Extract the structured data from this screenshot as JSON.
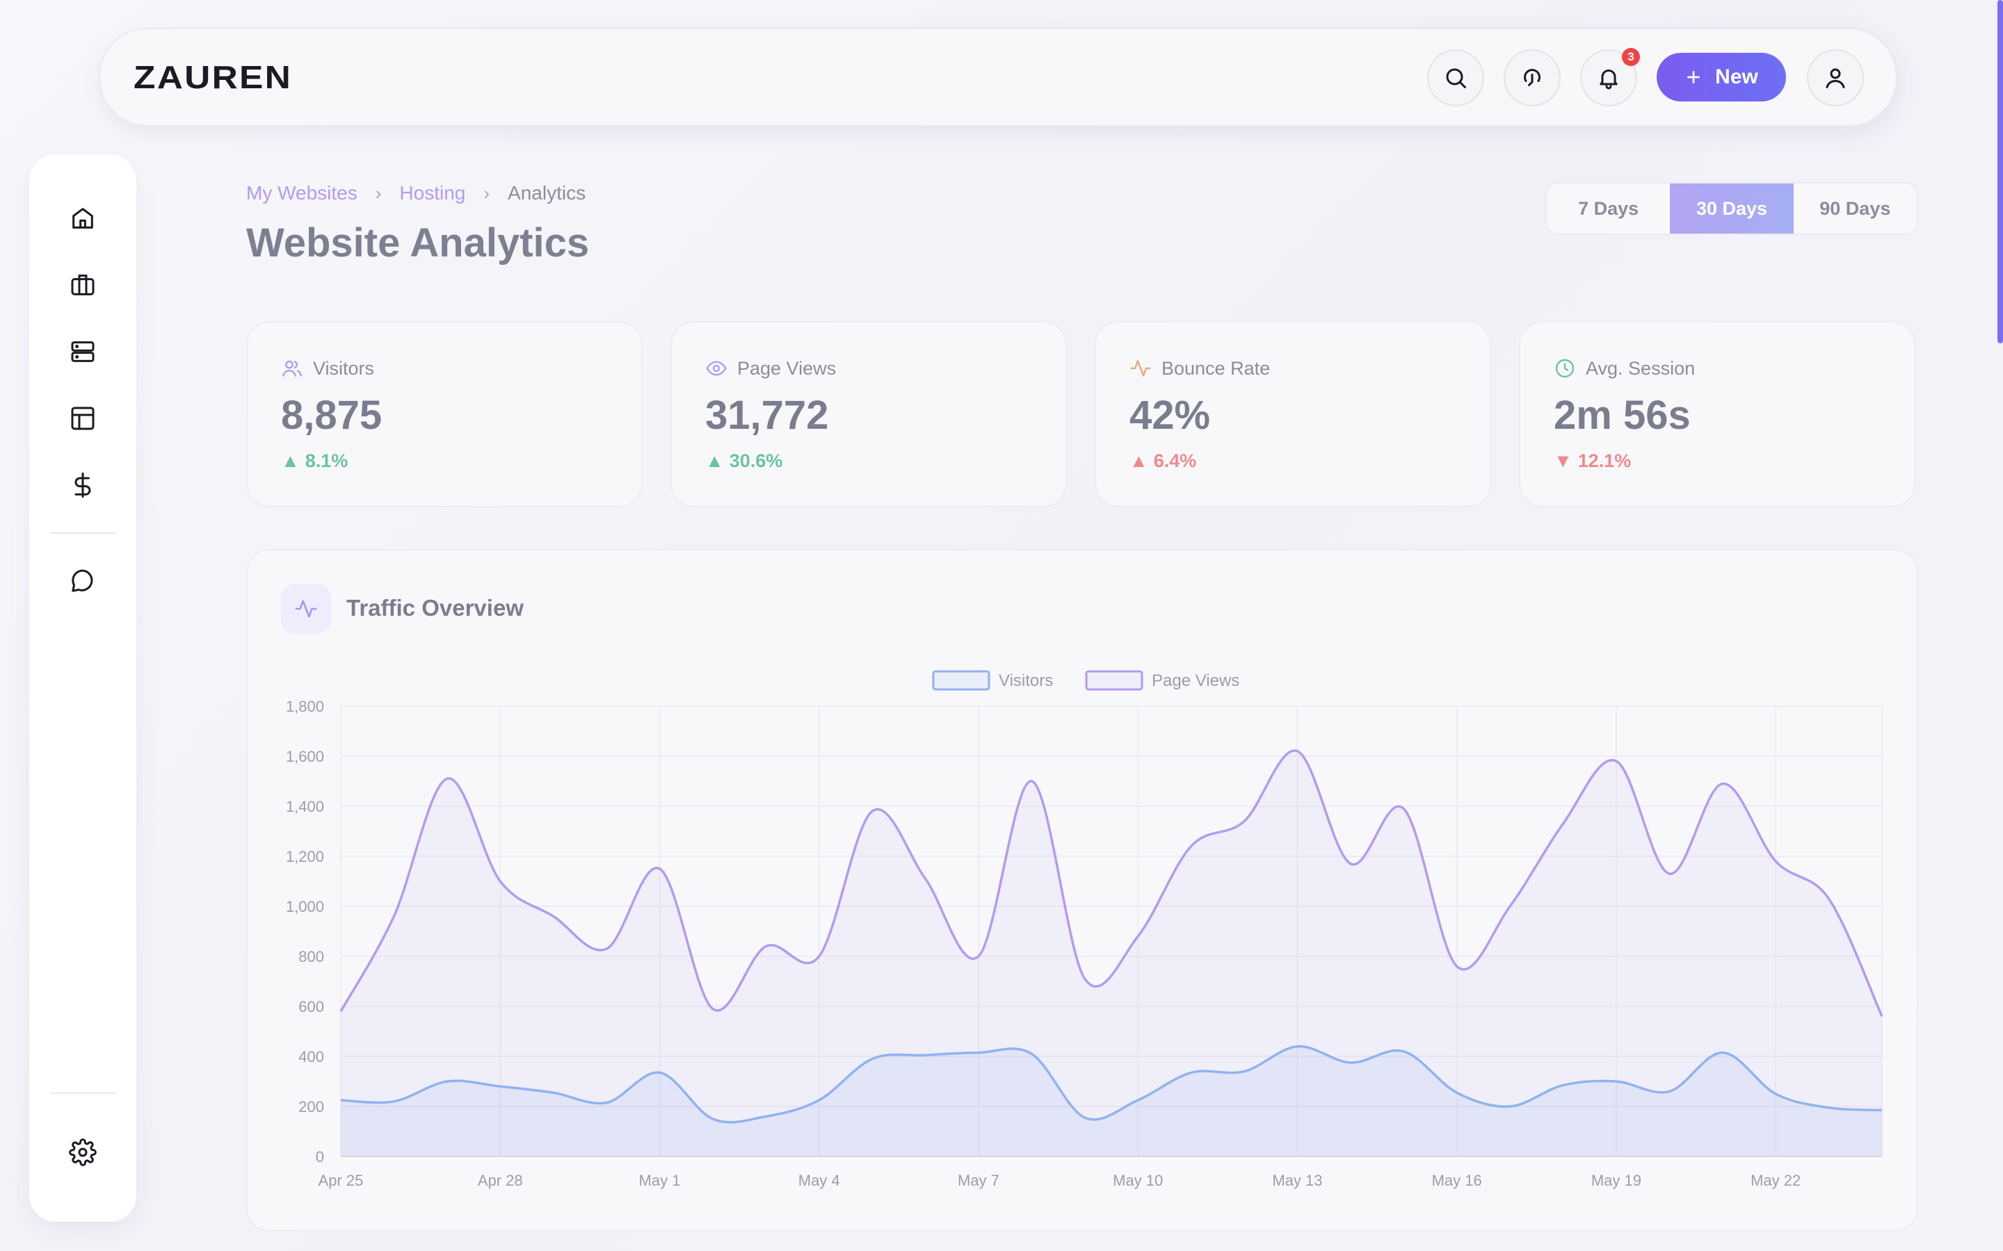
{
  "topbar": {
    "logo": "ZAUREN",
    "new_label": "New",
    "notification_count": "3"
  },
  "breadcrumb": [
    "My Websites",
    "Hosting",
    "Analytics"
  ],
  "page_title": "Website Analytics",
  "range": {
    "options": [
      "7 Days",
      "30 Days",
      "90 Days"
    ],
    "selected": "30 Days"
  },
  "stats": [
    {
      "label": "Visitors",
      "value": "8,875",
      "delta": "8.1%",
      "trend": "up",
      "icon": "users-icon",
      "color": "#b39bf0"
    },
    {
      "label": "Page Views",
      "value": "31,772",
      "delta": "30.6%",
      "trend": "up",
      "icon": "eye-icon",
      "color": "#b39bf0"
    },
    {
      "label": "Bounce Rate",
      "value": "42%",
      "delta": "6.4%",
      "trend": "up-bad",
      "icon": "activity-icon",
      "color": "#f0a57a"
    },
    {
      "label": "Avg. Session",
      "value": "2m 56s",
      "delta": "12.1%",
      "trend": "down",
      "icon": "clock-icon",
      "color": "#6bc4a0"
    }
  ],
  "panel": {
    "title": "Traffic Overview"
  },
  "chart_data": {
    "type": "line",
    "title": "Traffic Overview",
    "x": [
      "Apr 25",
      "Apr 26",
      "Apr 27",
      "Apr 28",
      "Apr 29",
      "Apr 30",
      "May 1",
      "May 2",
      "May 3",
      "May 4",
      "May 5",
      "May 6",
      "May 7",
      "May 8",
      "May 9",
      "May 10",
      "May 11",
      "May 12",
      "May 13",
      "May 14",
      "May 15",
      "May 16",
      "May 17",
      "May 18",
      "May 19",
      "May 20",
      "May 21",
      "May 22",
      "May 23",
      "May 24"
    ],
    "tick_labels": [
      "Apr 25",
      "Apr 28",
      "May 1",
      "May 4",
      "May 7",
      "May 10",
      "May 13",
      "May 16",
      "May 19",
      "May 22"
    ],
    "ylim": [
      0,
      1800
    ],
    "yticks": [
      0,
      200,
      400,
      600,
      800,
      1000,
      1200,
      1400,
      1600,
      1800
    ],
    "grid": true,
    "legend": "top-center",
    "series": [
      {
        "name": "Visitors",
        "color": "#8fb3ef",
        "values": [
          225,
          220,
          300,
          280,
          255,
          215,
          335,
          150,
          160,
          225,
          390,
          405,
          415,
          410,
          155,
          225,
          335,
          340,
          440,
          375,
          420,
          255,
          200,
          285,
          300,
          260,
          415,
          250,
          195,
          185
        ]
      },
      {
        "name": "Page Views",
        "color": "#b39bef",
        "values": [
          580,
          960,
          1510,
          1100,
          960,
          830,
          1150,
          590,
          840,
          800,
          1380,
          1110,
          800,
          1500,
          710,
          880,
          1240,
          1340,
          1620,
          1170,
          1390,
          760,
          1000,
          1330,
          1580,
          1130,
          1490,
          1180,
          1030,
          560
        ]
      }
    ]
  }
}
